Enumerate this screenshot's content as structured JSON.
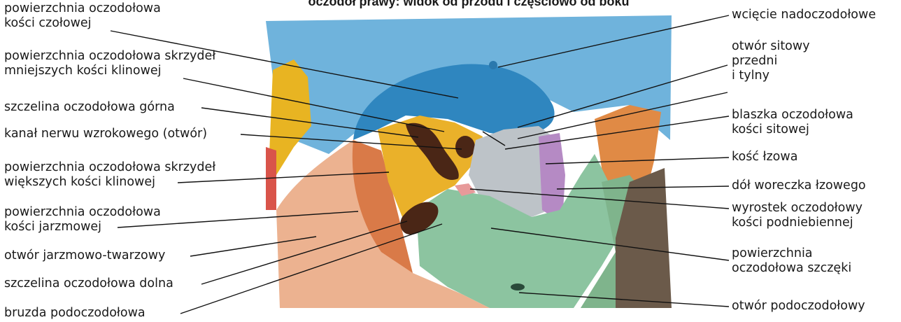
{
  "title": "oczodół prawy: widok od przodu i częściowo od boku",
  "labels_left": [
    {
      "id": "l1",
      "lines": [
        "powierzchnia oczodołowa",
        "kości czołowej"
      ]
    },
    {
      "id": "l2",
      "lines": [
        "powierzchnia oczodołowa skrzydeł",
        "mniejszych kości klinowej"
      ]
    },
    {
      "id": "l3",
      "lines": [
        "szczelina oczodołowa górna"
      ]
    },
    {
      "id": "l4",
      "lines": [
        "kanał nerwu wzrokowego (otwór)"
      ]
    },
    {
      "id": "l5",
      "lines": [
        "powierzchnia oczodołowa skrzydeł",
        "większych kości klinowej"
      ]
    },
    {
      "id": "l6",
      "lines": [
        "powierzchnia oczodołowa",
        "kości jarzmowej"
      ]
    },
    {
      "id": "l7",
      "lines": [
        "otwór jarzmowo-twarzowy"
      ]
    },
    {
      "id": "l8",
      "lines": [
        "szczelina oczodołowa dolna"
      ]
    },
    {
      "id": "l9",
      "lines": [
        "bruzda podoczodołowa"
      ]
    }
  ],
  "labels_right": [
    {
      "id": "r1",
      "lines": [
        "wcięcie nadoczodołowe"
      ]
    },
    {
      "id": "r2",
      "lines": [
        "otwór sitowy",
        "przedni",
        "i tylny"
      ]
    },
    {
      "id": "r3",
      "lines": [
        "blaszka oczodołowa",
        "kości sitowej"
      ]
    },
    {
      "id": "r4",
      "lines": [
        "kość łzowa"
      ]
    },
    {
      "id": "r5",
      "lines": [
        "dół woreczka łzowego"
      ]
    },
    {
      "id": "r6",
      "lines": [
        "wyrostek oczodołowy",
        "kości podniebiennej"
      ]
    },
    {
      "id": "r7",
      "lines": [
        "powierzchnia",
        "oczodołowa szczęki"
      ]
    },
    {
      "id": "r8",
      "lines": [
        "otwór podoczodołowy"
      ]
    }
  ],
  "colors": {
    "frontal_bone": "#2f86bf",
    "sphenoid": "#e8b422",
    "zygomatic": "#e9a07c",
    "maxilla": "#8cc4a0",
    "ethmoid": "#b9c0c6",
    "lacrimal": "#b58ac4",
    "fissure": "#4a2616",
    "sky": "#6fb3dc",
    "nasal": "#e08a45",
    "leader": "#111111"
  }
}
